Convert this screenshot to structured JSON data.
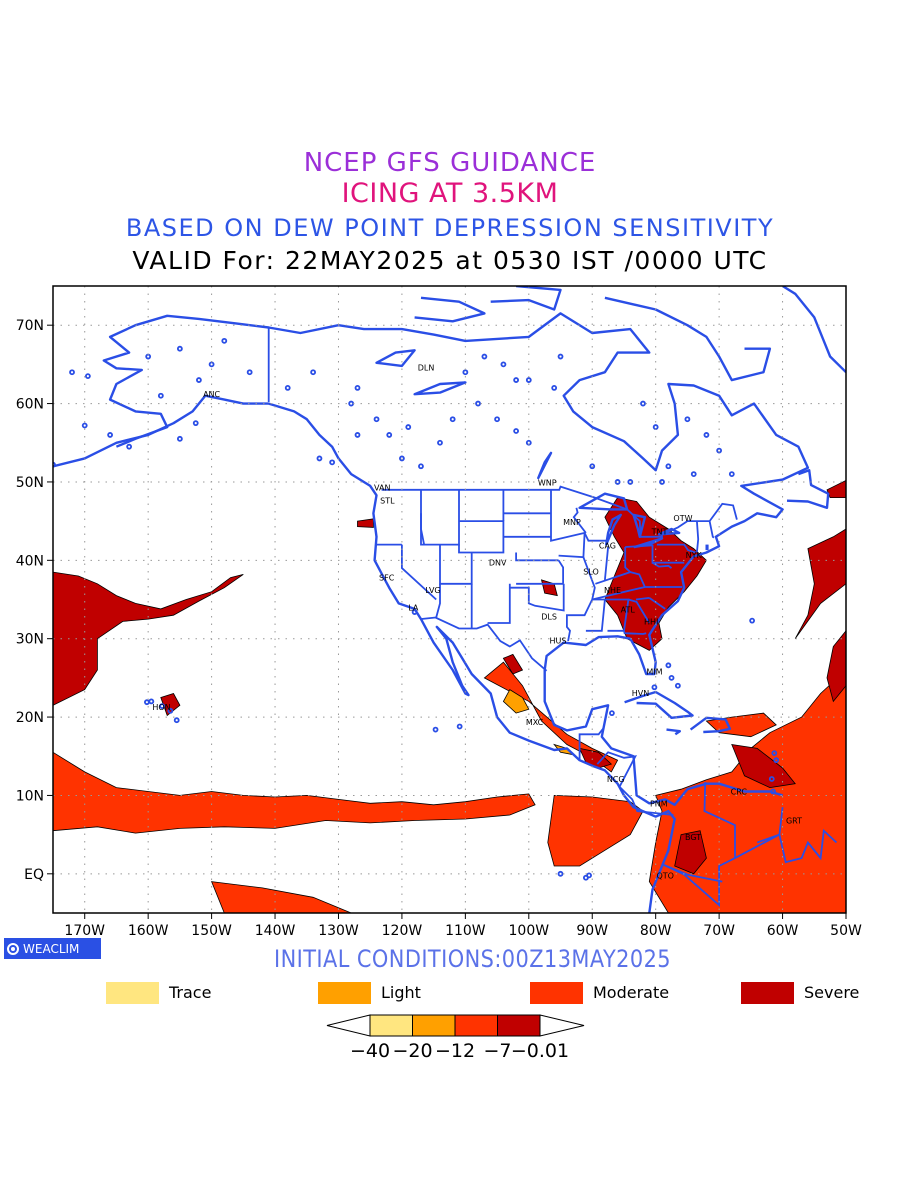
{
  "titles": {
    "line1": "NCEP GFS GUIDANCE",
    "line2": "ICING AT 3.5KM",
    "line3": "BASED ON DEW POINT DEPRESSION SENSITIVITY",
    "line4": "VALID For: 22MAY2025 at 0530 IST /0000 UTC"
  },
  "map": {
    "lon_range": [
      -175,
      -50
    ],
    "lat_range": [
      -5,
      75
    ],
    "lat_ticks": [
      {
        "value": 70,
        "label": "70N"
      },
      {
        "value": 60,
        "label": "60N"
      },
      {
        "value": 50,
        "label": "50N"
      },
      {
        "value": 40,
        "label": "40N"
      },
      {
        "value": 30,
        "label": "30N"
      },
      {
        "value": 20,
        "label": "20N"
      },
      {
        "value": 10,
        "label": "10N"
      },
      {
        "value": 0,
        "label": "EQ"
      }
    ],
    "lon_ticks": [
      {
        "value": -170,
        "label": "170W"
      },
      {
        "value": -160,
        "label": "160W"
      },
      {
        "value": -150,
        "label": "150W"
      },
      {
        "value": -140,
        "label": "140W"
      },
      {
        "value": -130,
        "label": "130W"
      },
      {
        "value": -120,
        "label": "120W"
      },
      {
        "value": -110,
        "label": "110W"
      },
      {
        "value": -100,
        "label": "100W"
      },
      {
        "value": -90,
        "label": "90W"
      },
      {
        "value": -80,
        "label": "80W"
      },
      {
        "value": -70,
        "label": "70W"
      },
      {
        "value": -60,
        "label": "60W"
      },
      {
        "value": -50,
        "label": "50W"
      }
    ],
    "grid": "dotted",
    "stations": [
      {
        "code": "ANC",
        "lon": -150.0,
        "lat": 61.2
      },
      {
        "code": "DLN",
        "lon": -116.2,
        "lat": 64.6
      },
      {
        "code": "VAN",
        "lon": -123.1,
        "lat": 49.3
      },
      {
        "code": "STL",
        "lon": -122.3,
        "lat": 47.6
      },
      {
        "code": "WNP",
        "lon": -97.1,
        "lat": 49.9
      },
      {
        "code": "MNP",
        "lon": -93.2,
        "lat": 44.9
      },
      {
        "code": "OTW",
        "lon": -75.7,
        "lat": 45.4
      },
      {
        "code": "TNT",
        "lon": -79.4,
        "lat": 43.7
      },
      {
        "code": "CAG",
        "lon": -87.6,
        "lat": 41.9
      },
      {
        "code": "NYK",
        "lon": -74.0,
        "lat": 40.7
      },
      {
        "code": "DNV",
        "lon": -104.9,
        "lat": 39.7
      },
      {
        "code": "SFC",
        "lon": -122.4,
        "lat": 37.8
      },
      {
        "code": "LVG",
        "lon": -115.1,
        "lat": 36.2
      },
      {
        "code": "SLO",
        "lon": -90.2,
        "lat": 38.6
      },
      {
        "code": "NHE",
        "lon": -86.8,
        "lat": 36.2
      },
      {
        "code": "LA",
        "lon": -118.2,
        "lat": 34.0
      },
      {
        "code": "ATL",
        "lon": -84.4,
        "lat": 33.7
      },
      {
        "code": "HHI",
        "lon": -80.7,
        "lat": 32.2
      },
      {
        "code": "DLS",
        "lon": -96.8,
        "lat": 32.8
      },
      {
        "code": "HUS",
        "lon": -95.4,
        "lat": 29.8
      },
      {
        "code": "MIM",
        "lon": -80.2,
        "lat": 25.8
      },
      {
        "code": "HVN",
        "lon": -82.4,
        "lat": 23.1
      },
      {
        "code": "HON",
        "lon": -157.9,
        "lat": 21.3
      },
      {
        "code": "MXC",
        "lon": -99.1,
        "lat": 19.4
      },
      {
        "code": "NCG",
        "lon": -86.3,
        "lat": 12.1
      },
      {
        "code": "CRC",
        "lon": -66.9,
        "lat": 10.5
      },
      {
        "code": "PNM",
        "lon": -79.5,
        "lat": 9.0
      },
      {
        "code": "GRT",
        "lon": -58.2,
        "lat": 6.8
      },
      {
        "code": "BGT",
        "lon": -74.1,
        "lat": 4.7
      },
      {
        "code": "QTO",
        "lon": -78.5,
        "lat": -0.2
      }
    ]
  },
  "categories": [
    {
      "name": "Trace",
      "color": "#ffe680"
    },
    {
      "name": "Light",
      "color": "#ffa000"
    },
    {
      "name": "Moderate",
      "color": "#ff3300"
    },
    {
      "name": "Severe",
      "color": "#c00000"
    }
  ],
  "colorbar": {
    "labels": [
      "−40",
      "−20",
      "−12",
      "−7",
      "−0.01"
    ],
    "colors": [
      "#ffe680",
      "#ffa000",
      "#ff3300",
      "#c00000"
    ]
  },
  "footer": {
    "badge": "WEACLIM",
    "initial_conditions": "INITIAL CONDITIONS:00Z13MAY2025"
  },
  "colors": {
    "coast": "#2a4ee6",
    "moderate": "#ff3300",
    "severe": "#c00000",
    "light": "#ffa000"
  }
}
